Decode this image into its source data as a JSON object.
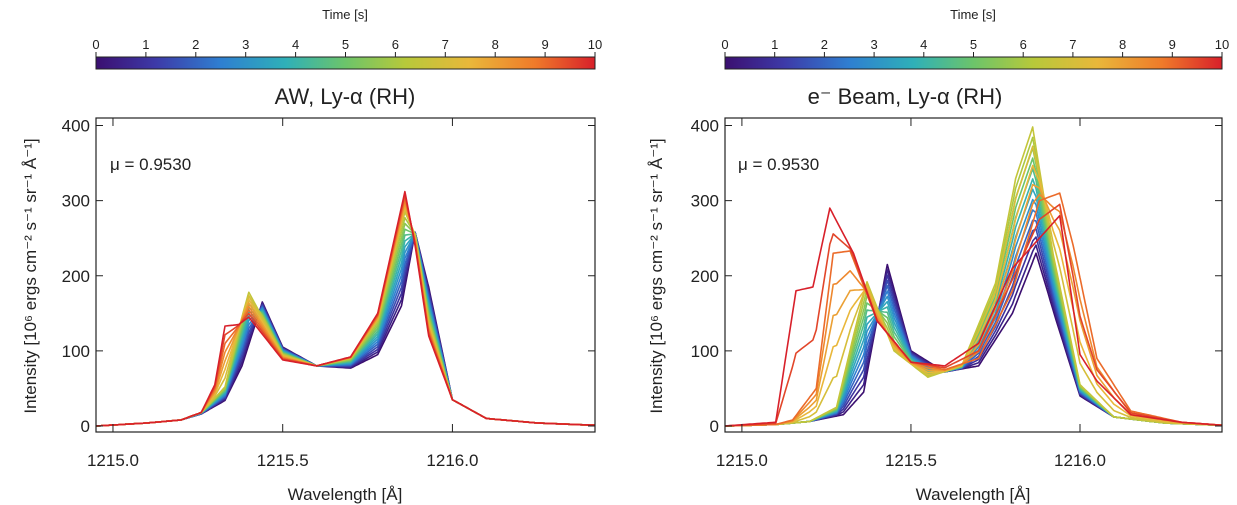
{
  "chart_data": [
    {
      "type": "line",
      "title": "AW, Ly-α (RH)",
      "xlabel": "Wavelength [Å]",
      "ylabel": "Intensity [10⁶ ergs cm⁻² s⁻¹ sr⁻¹ Å⁻¹]",
      "annotation": "μ = 0.9530",
      "xlim": [
        1214.95,
        1216.42
      ],
      "ylim": [
        -8,
        410
      ],
      "xticks": [
        1215.0,
        1215.5,
        1216.0
      ],
      "xtick_labels": [
        "1215.0",
        "1215.5",
        "1216.0"
      ],
      "yticks": [
        0,
        100,
        200,
        300,
        400
      ],
      "ytick_labels": [
        "0",
        "100",
        "200",
        "300",
        "400"
      ],
      "grid": false,
      "colorbar": {
        "label": "Time [s]",
        "range": [
          0,
          10
        ],
        "ticks": [
          "0",
          "1",
          "2",
          "3",
          "4",
          "5",
          "6",
          "7",
          "8",
          "9",
          "10"
        ],
        "colormap": "rainbow"
      },
      "series_count": 21,
      "series": [
        {
          "time": 0,
          "color": "#4b1b8e",
          "x": [
            1214.95,
            1215.1,
            1215.2,
            1215.26,
            1215.33,
            1215.38,
            1215.44,
            1215.5,
            1215.6,
            1215.7,
            1215.78,
            1215.85,
            1215.89,
            1215.93,
            1216.0,
            1216.1,
            1216.25,
            1216.42
          ],
          "y": [
            0,
            4,
            8,
            16,
            34,
            80,
            165,
            105,
            80,
            77,
            95,
            160,
            258,
            185,
            35,
            10,
            4,
            1
          ]
        },
        {
          "time": 6.5,
          "color": "#c8c033",
          "x": [
            1214.95,
            1215.1,
            1215.2,
            1215.26,
            1215.33,
            1215.38,
            1215.4,
            1215.5,
            1215.6,
            1215.7,
            1215.78,
            1215.86,
            1215.89,
            1215.93,
            1216.0,
            1216.1,
            1216.25,
            1216.42
          ],
          "y": [
            0,
            4,
            8,
            18,
            52,
            145,
            178,
            95,
            80,
            90,
            140,
            285,
            255,
            140,
            35,
            10,
            4,
            1
          ]
        },
        {
          "time": 10,
          "color": "#d8302a",
          "x": [
            1214.95,
            1215.1,
            1215.2,
            1215.26,
            1215.3,
            1215.33,
            1215.37,
            1215.4,
            1215.5,
            1215.6,
            1215.7,
            1215.78,
            1215.86,
            1215.89,
            1215.93,
            1216.0,
            1216.1,
            1216.25,
            1216.42
          ],
          "y": [
            0,
            4,
            8,
            18,
            55,
            133,
            135,
            145,
            88,
            80,
            92,
            150,
            312,
            240,
            120,
            35,
            10,
            4,
            1
          ]
        }
      ]
    },
    {
      "type": "line",
      "title": "e⁻ Beam, Ly-α (RH)",
      "xlabel": "Wavelength [Å]",
      "ylabel": "Intensity [10⁶ ergs cm⁻² s⁻¹ sr⁻¹ Å⁻¹]",
      "annotation": "μ = 0.9530",
      "xlim": [
        1214.95,
        1216.42
      ],
      "ylim": [
        -8,
        410
      ],
      "xticks": [
        1215.0,
        1215.5,
        1216.0
      ],
      "xtick_labels": [
        "1215.0",
        "1215.5",
        "1216.0"
      ],
      "yticks": [
        0,
        100,
        200,
        300,
        400
      ],
      "ytick_labels": [
        "0",
        "100",
        "200",
        "300",
        "400"
      ],
      "grid": false,
      "colorbar": {
        "label": "Time [s]",
        "range": [
          0,
          10
        ],
        "ticks": [
          "0",
          "1",
          "2",
          "3",
          "4",
          "5",
          "6",
          "7",
          "8",
          "9",
          "10"
        ],
        "colormap": "rainbow"
      },
      "series_count": 21,
      "series": [
        {
          "time": 0,
          "color": "#4b1b8e",
          "x": [
            1214.95,
            1215.1,
            1215.2,
            1215.3,
            1215.36,
            1215.43,
            1215.5,
            1215.6,
            1215.7,
            1215.8,
            1215.87,
            1215.93,
            1216.0,
            1216.1,
            1216.25,
            1216.42
          ],
          "y": [
            0,
            2,
            6,
            15,
            45,
            215,
            100,
            72,
            80,
            150,
            230,
            140,
            40,
            12,
            4,
            1
          ]
        },
        {
          "time": 6.5,
          "color": "#c8c033",
          "x": [
            1214.95,
            1215.1,
            1215.2,
            1215.28,
            1215.33,
            1215.37,
            1215.45,
            1215.55,
            1215.65,
            1215.75,
            1215.81,
            1215.86,
            1215.92,
            1216.0,
            1216.1,
            1216.25,
            1216.42
          ],
          "y": [
            0,
            2,
            6,
            25,
            120,
            192,
            100,
            65,
            80,
            190,
            330,
            398,
            230,
            55,
            12,
            4,
            1
          ]
        },
        {
          "time": 9,
          "color": "#e8532c",
          "x": [
            1214.95,
            1215.1,
            1215.15,
            1215.22,
            1215.27,
            1215.32,
            1215.4,
            1215.5,
            1215.6,
            1215.7,
            1215.8,
            1215.88,
            1215.94,
            1215.98,
            1216.05,
            1216.15,
            1216.3,
            1216.42
          ],
          "y": [
            0,
            2,
            8,
            50,
            230,
            233,
            140,
            85,
            75,
            90,
            180,
            300,
            310,
            240,
            90,
            20,
            5,
            1
          ]
        },
        {
          "time": 10,
          "color": "#d8302a",
          "x": [
            1214.95,
            1215.1,
            1215.16,
            1215.21,
            1215.26,
            1215.33,
            1215.4,
            1215.5,
            1215.6,
            1215.7,
            1215.8,
            1215.88,
            1215.94,
            1216.0,
            1216.05,
            1216.15,
            1216.3,
            1216.42
          ],
          "y": [
            0,
            5,
            180,
            185,
            290,
            230,
            140,
            85,
            80,
            110,
            210,
            250,
            280,
            95,
            60,
            15,
            5,
            1
          ]
        }
      ]
    }
  ]
}
